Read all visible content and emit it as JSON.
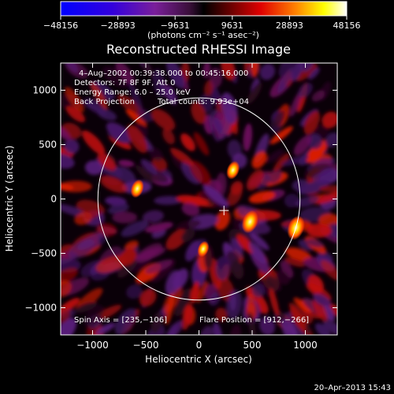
{
  "chart_data": {
    "type": "heatmap",
    "title": "Reconstructed RHESSI Image",
    "xlabel": "Heliocentric X (arcsec)",
    "ylabel": "Heliocentric Y (arcsec)",
    "xlim": [
      -1300,
      1300
    ],
    "ylim": [
      -1250,
      1250
    ],
    "x_ticks": [
      -1000,
      -500,
      0,
      500,
      1000
    ],
    "y_ticks": [
      1000,
      500,
      0,
      -500,
      -1000
    ],
    "x_tick_labels": [
      "−1000",
      "−500",
      "0",
      "500",
      "1000"
    ],
    "y_tick_labels": [
      "1000",
      "500",
      "0",
      "−500",
      "−1000"
    ],
    "colorbar": {
      "range": [
        -48156,
        48156
      ],
      "tick_values": [
        -48156,
        -28893,
        -9631,
        9631,
        28893,
        48156
      ],
      "tick_labels": [
        "−48156",
        "−28893",
        "−9631",
        "9631",
        "28893",
        "48156"
      ],
      "units": "(photons cm⁻² s⁻¹ asec⁻²)"
    },
    "annotations": {
      "time_range": "4–Aug–2002 00:39:38.000 to 00:45:16.000",
      "detectors": "Detectors: 7F 8F 9F, Att 0",
      "energy_range": "Energy Range: 6.0 – 25.0 keV",
      "method": "Back Projection",
      "total_counts": "Total counts: 9.93e+04",
      "spin_axis": "Spin Axis = [235,−106]",
      "flare_position": "Flare Position = [912,−266]"
    },
    "marks": {
      "spin_axis_point": [
        235,
        -106
      ],
      "flare_position": [
        912,
        -266
      ],
      "solar_limb_radius": 950
    },
    "bright_sources": [
      {
        "x": 912,
        "y": -266,
        "intensity": 48156
      },
      {
        "x": 480,
        "y": -210,
        "intensity": 44000
      },
      {
        "x": 320,
        "y": 265,
        "intensity": 30000
      },
      {
        "x": -580,
        "y": 95,
        "intensity": 30000
      },
      {
        "x": 40,
        "y": -460,
        "intensity": 22000
      }
    ],
    "grid": false
  },
  "footer": {
    "timestamp": "20–Apr–2013 15:43"
  }
}
